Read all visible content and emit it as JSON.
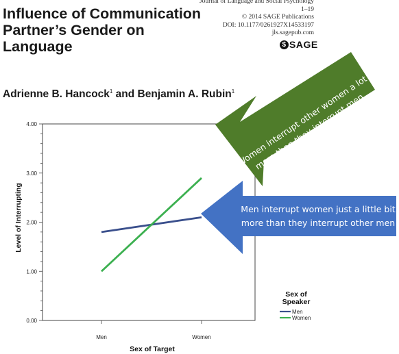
{
  "header": {
    "title_lines": [
      "Influence of Communication",
      "Partner’s Gender on",
      "Language"
    ],
    "journal_lines": [
      "Journal of Language and Social Psychology",
      "1–19",
      "© 2014 SAGE Publications",
      "DOI: 10.1177/0261927X14533197",
      "jls.sagepub.com"
    ],
    "publisher": "SAGE",
    "authors": {
      "author1": "Adrienne B. Hancock",
      "author1_affil": "1",
      "connector": " and ",
      "author2": "Benjamin A. Rubin",
      "author2_affil": "1"
    }
  },
  "chart_data": {
    "type": "line",
    "categories": [
      "Men",
      "Women"
    ],
    "series": [
      {
        "name": "Men",
        "values": [
          1.8,
          2.1
        ],
        "color": "#3a4f8c"
      },
      {
        "name": "Women",
        "values": [
          1.0,
          2.9
        ],
        "color": "#3cb050"
      }
    ],
    "xlabel": "Sex of Target",
    "ylabel": "Level of Interrupting",
    "ylim": [
      0,
      4
    ],
    "yticks": [
      "0.00",
      "1.00",
      "2.00",
      "3.00",
      "4.00"
    ],
    "legend_title": [
      "Sex of",
      "Speaker"
    ],
    "legend_position": "bottom-right",
    "grid": false
  },
  "annotations": [
    {
      "name": "green-arrow",
      "color": "#4f7c2a",
      "lines": [
        "Women interrupt other women a lot",
        "more than they interrupt men"
      ]
    },
    {
      "name": "blue-arrow",
      "color": "#4372c4",
      "lines": [
        "Men interrupt women just a little bit",
        "more than they interrupt other men"
      ]
    }
  ]
}
